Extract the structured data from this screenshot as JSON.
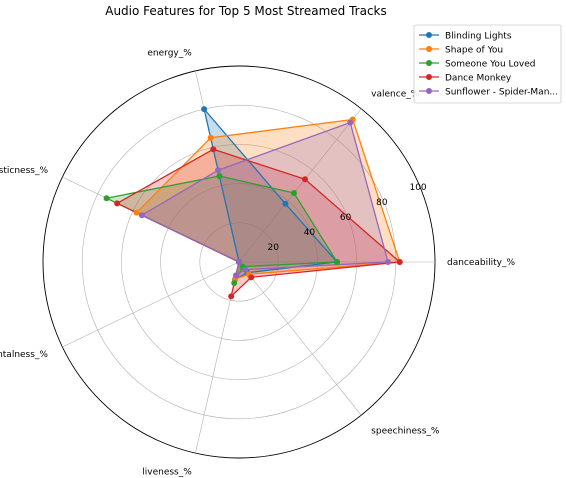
{
  "chart_data": {
    "type": "radar",
    "title": "Audio Features for Top 5 Most Streamed Tracks",
    "axes": [
      "danceability_%",
      "valence_%",
      "energy_%",
      "acousticness_%",
      "instrumentalness_%",
      "liveness_%",
      "speechiness_%"
    ],
    "rlim": [
      0,
      100
    ],
    "r_ticks": [
      20,
      40,
      60,
      80,
      100
    ],
    "grid": true,
    "legend_position": "top-right",
    "series": [
      {
        "name": "Blinding Lights",
        "color": "#1f77b4",
        "values": [
          50,
          38,
          80,
          0,
          0,
          9,
          7
        ]
      },
      {
        "name": "Shape of You",
        "color": "#ff7f0e",
        "values": [
          82,
          93,
          65,
          58,
          0,
          9,
          8
        ]
      },
      {
        "name": "Someone You Loved",
        "color": "#2ca02c",
        "values": [
          50,
          45,
          45,
          75,
          0,
          11,
          3
        ]
      },
      {
        "name": "Dance Monkey",
        "color": "#d62728",
        "values": [
          82,
          54,
          59,
          69,
          0,
          18,
          10
        ]
      },
      {
        "name": "Sunflower - Spider-Man...",
        "color": "#9467bd",
        "values": [
          76,
          91,
          48,
          55,
          0,
          7,
          5
        ]
      }
    ]
  }
}
